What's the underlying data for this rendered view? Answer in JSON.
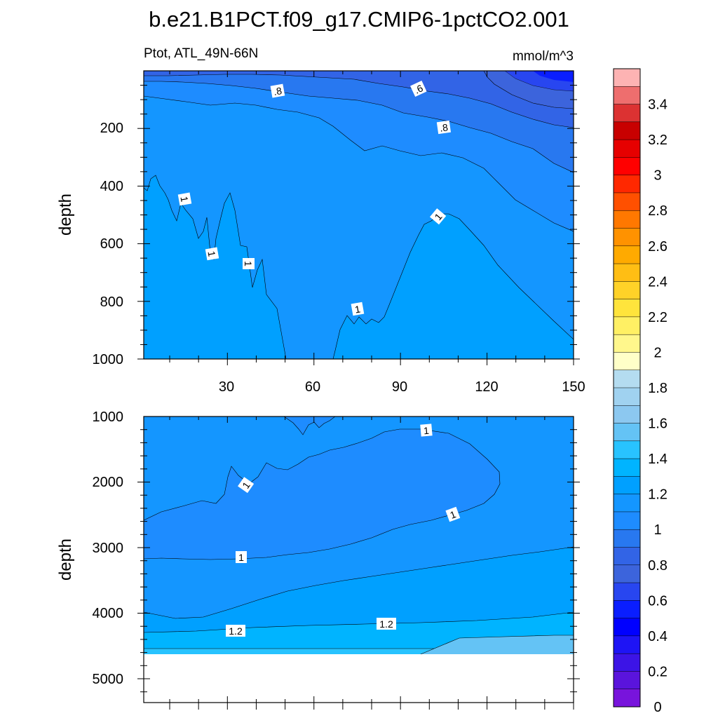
{
  "title": "b.e21.B1PCT.f09_g17.CMIP6-1pctCO2.001",
  "chart_data": [
    {
      "type": "contour",
      "panel": "upper",
      "subtitle_left": "Ptot, ATL_49N-66N",
      "subtitle_right": "mmol/m^3",
      "ylabel": "depth",
      "ylim": [
        1000,
        0
      ],
      "xlim": [
        1,
        150
      ],
      "x_ticks": [
        "30",
        "60",
        "90",
        "120",
        "150"
      ],
      "y_ticks": [
        "200",
        "400",
        "600",
        "800",
        "1000"
      ],
      "contour_levels": [
        0.6,
        0.7,
        0.8,
        0.9,
        1.0
      ],
      "contour_labels": [
        ".8",
        ".6",
        ".8",
        "1",
        "1",
        "1",
        "1",
        "1"
      ]
    },
    {
      "type": "contour",
      "panel": "lower",
      "ylabel": "depth",
      "ylim": [
        5400,
        1000
      ],
      "xlim": [
        1,
        150
      ],
      "y_ticks": [
        "1000",
        "2000",
        "3000",
        "4000",
        "5000"
      ],
      "contour_levels": [
        1.0,
        1.1,
        1.2,
        1.3
      ],
      "contour_labels": [
        "1",
        "1",
        "1",
        "1",
        "1.2",
        "1.2"
      ],
      "bottom_depth": 4620
    }
  ],
  "colorbar": {
    "labels": [
      "3.4",
      "3.2",
      "3",
      "2.8",
      "2.6",
      "2.4",
      "2.2",
      "2",
      "1.8",
      "1.6",
      "1.4",
      "1.2",
      "1",
      "0.8",
      "0.6",
      "0.4",
      "0.2",
      "0"
    ],
    "colors_top_to_bottom": [
      "#fdb3b3",
      "#ee6e6e",
      "#dc3232",
      "#c80000",
      "#e60000",
      "#ff0000",
      "#ff2800",
      "#ff5000",
      "#ff7800",
      "#ff9200",
      "#ffaa00",
      "#ffbe14",
      "#ffd228",
      "#ffe43c",
      "#fff064",
      "#fff78c",
      "#ffffc8",
      "#b4dcf0",
      "#a0d2f0",
      "#8cc8f0",
      "#64c3f5",
      "#28c3ff",
      "#00b4ff",
      "#00a0ff",
      "#1496ff",
      "#1e8cff",
      "#2878f0",
      "#3264e6",
      "#3c64dc",
      "#2846f0",
      "#0a1eff",
      "#0000ff",
      "#1e14f5",
      "#3c14e6",
      "#5a14dc",
      "#7814dc"
    ]
  }
}
